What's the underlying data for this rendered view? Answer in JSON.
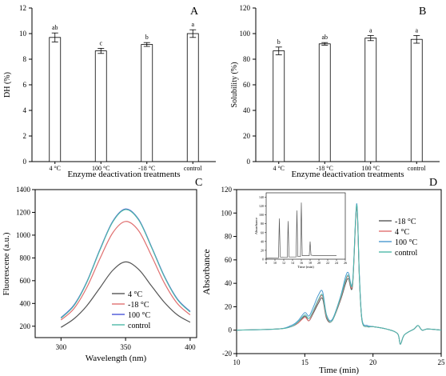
{
  "chart_data": [
    {
      "panel": "A",
      "type": "bar",
      "xlabel": "Enzyme deactivation treatments",
      "ylabel": "DH (%)",
      "categories": [
        "4 °C",
        "100 °C",
        "-18 °C",
        "control"
      ],
      "values": [
        9.7,
        8.65,
        9.15,
        10.0
      ],
      "errors": [
        0.35,
        0.2,
        0.15,
        0.3
      ],
      "sig_letters": [
        "ab",
        "c",
        "b",
        "a"
      ],
      "ylim": [
        0,
        12
      ],
      "yticks": [
        0,
        2,
        4,
        6,
        8,
        10,
        12
      ]
    },
    {
      "panel": "B",
      "type": "bar",
      "xlabel": "Enzyme deactivation treatments",
      "ylabel": "Solubility (%)",
      "categories": [
        "4 °C",
        "-18 °C",
        "100 °C",
        "control"
      ],
      "values": [
        86.5,
        92.0,
        96.5,
        95.5
      ],
      "errors": [
        3.0,
        1.0,
        2.0,
        3.0
      ],
      "sig_letters": [
        "b",
        "ab",
        "a",
        "a"
      ],
      "ylim": [
        0,
        120
      ],
      "yticks": [
        0,
        20,
        40,
        60,
        80,
        100,
        120
      ]
    },
    {
      "panel": "C",
      "type": "line",
      "xlabel": "Wavelength (nm)",
      "ylabel": "Fluorescene (a.u.)",
      "xlim": [
        280,
        405
      ],
      "ylim": [
        100,
        1400
      ],
      "xticks": [
        300,
        350,
        400
      ],
      "yticks": [
        200,
        400,
        600,
        800,
        1000,
        1200,
        1400
      ],
      "legend_position": "lower-right",
      "series": [
        {
          "name": "4 °C",
          "color": "#555555",
          "x": [
            300,
            310,
            320,
            330,
            340,
            350,
            360,
            370,
            380,
            390,
            400
          ],
          "y": [
            190,
            265,
            380,
            535,
            690,
            765,
            700,
            555,
            410,
            300,
            235
          ]
        },
        {
          "name": "-18 °C",
          "color": "#e07070",
          "x": [
            300,
            310,
            320,
            330,
            340,
            350,
            360,
            370,
            380,
            390,
            400
          ],
          "y": [
            255,
            355,
            540,
            790,
            1020,
            1120,
            1040,
            820,
            580,
            400,
            300
          ]
        },
        {
          "name": "100 °C",
          "color": "#4a55d8",
          "x": [
            300,
            310,
            320,
            330,
            340,
            350,
            360,
            370,
            380,
            390,
            400
          ],
          "y": [
            275,
            385,
            590,
            870,
            1120,
            1230,
            1140,
            900,
            640,
            440,
            330
          ]
        },
        {
          "name": "control",
          "color": "#4fb8a8",
          "x": [
            300,
            310,
            320,
            330,
            340,
            350,
            360,
            370,
            380,
            390,
            400
          ],
          "y": [
            270,
            380,
            585,
            865,
            1115,
            1225,
            1135,
            895,
            635,
            435,
            325
          ]
        }
      ]
    },
    {
      "panel": "D",
      "type": "line",
      "xlabel": "Time (min)",
      "ylabel": "Absorbance",
      "xlim": [
        10,
        25
      ],
      "ylim": [
        -20,
        120
      ],
      "xticks": [
        10,
        15,
        20,
        25
      ],
      "yticks": [
        -20,
        0,
        20,
        40,
        60,
        80,
        100,
        120
      ],
      "legend_position": "top-right",
      "series": [
        {
          "name": "-18 °C",
          "color": "#555555",
          "x": [
            10,
            13,
            14,
            14.5,
            15,
            15.3,
            15.6,
            16,
            16.3,
            16.6,
            17,
            17.6,
            18,
            18.2,
            18.5,
            18.8,
            19,
            19.2,
            19.6,
            20,
            21,
            21.8,
            22,
            22.3,
            23,
            23.3,
            23.6,
            24,
            25
          ],
          "y": [
            0,
            1,
            3,
            6,
            12,
            8,
            14,
            23,
            27,
            10,
            8,
            25,
            40,
            44,
            38,
            105,
            45,
            8,
            3,
            3,
            1,
            -3,
            -12,
            -4,
            1,
            4,
            0,
            1,
            0
          ]
        },
        {
          "name": "4 °C",
          "color": "#e07070",
          "x": [
            10,
            13,
            14,
            14.5,
            15,
            15.3,
            15.6,
            16,
            16.3,
            16.6,
            17,
            17.6,
            18,
            18.2,
            18.5,
            18.8,
            19,
            19.2,
            19.6,
            20,
            21,
            21.8,
            22,
            22.3,
            23,
            23.3,
            23.6,
            24,
            25
          ],
          "y": [
            0,
            1,
            3,
            6,
            11,
            8,
            15,
            25,
            29,
            11,
            8,
            26,
            42,
            46,
            39,
            106,
            46,
            8,
            3,
            3,
            1,
            -3,
            -12,
            -4,
            1,
            4,
            0,
            1,
            0
          ]
        },
        {
          "name": "100 °C",
          "color": "#4a9ad0",
          "x": [
            10,
            13,
            14,
            14.5,
            15,
            15.3,
            15.6,
            16,
            16.3,
            16.6,
            17,
            17.6,
            18,
            18.2,
            18.5,
            18.8,
            19,
            19.2,
            19.6,
            20,
            21,
            21.8,
            22,
            22.3,
            23,
            23.3,
            23.6,
            24,
            25
          ],
          "y": [
            0,
            1,
            4,
            8,
            15,
            12,
            19,
            30,
            33,
            13,
            9,
            28,
            46,
            49,
            41,
            108,
            48,
            9,
            4,
            3,
            1,
            -3,
            -12,
            -4,
            1,
            4,
            0,
            1,
            0
          ]
        },
        {
          "name": "control",
          "color": "#4fb8a8",
          "x": [
            10,
            13,
            14,
            14.5,
            15,
            15.3,
            15.6,
            16,
            16.3,
            16.6,
            17,
            17.6,
            18,
            18.2,
            18.5,
            18.8,
            19,
            19.2,
            19.6,
            20,
            21,
            21.8,
            22,
            22.3,
            23,
            23.3,
            23.6,
            24,
            25
          ],
          "y": [
            0,
            1,
            3,
            7,
            13,
            10,
            16,
            26,
            30,
            12,
            8,
            27,
            43,
            47,
            40,
            107,
            46,
            8,
            3,
            3,
            1,
            -3,
            -12,
            -4,
            1,
            4,
            0,
            1,
            0
          ]
        }
      ],
      "inset": {
        "type": "line",
        "xlabel": "Time (min)",
        "ylabel": "Absorbance",
        "xlim": [
          8,
          26
        ],
        "ylim": [
          0,
          150
        ],
        "xticks": [
          8,
          10,
          12,
          14,
          16,
          18,
          20,
          22,
          24,
          26
        ],
        "yticks": [
          0,
          20,
          40,
          60,
          80,
          100,
          120,
          140
        ],
        "color": "#555555",
        "x": [
          8,
          10,
          10.8,
          11.0,
          11.2,
          12.0,
          12.8,
          13.0,
          13.2,
          14,
          14.8,
          15.0,
          15.2,
          15.8,
          16.0,
          16.2,
          17,
          17.8,
          18.0,
          18.2,
          19,
          20,
          22,
          24
        ],
        "y": [
          2,
          3,
          3,
          92,
          5,
          4,
          4,
          86,
          5,
          5,
          5,
          110,
          6,
          6,
          128,
          8,
          8,
          8,
          40,
          9,
          8,
          8,
          8,
          8
        ]
      }
    }
  ]
}
